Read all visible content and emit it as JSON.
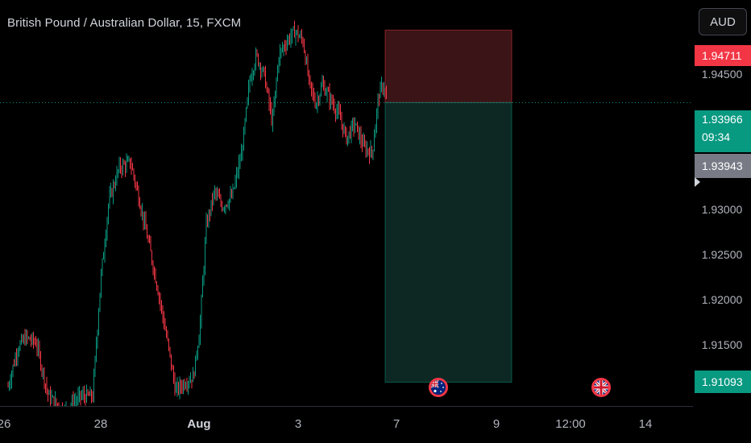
{
  "symbol": {
    "title": "British Pound / Australian Dollar, 15, FXCM"
  },
  "currency_button": {
    "label": "AUD"
  },
  "price_axis": {
    "ticks": [
      "1.94500",
      "1.93000",
      "1.92500",
      "1.92000",
      "1.91500"
    ],
    "stop_price": "1.94711",
    "last_price": "1.93966",
    "countdown": "09:34",
    "bid_price": "1.93943",
    "target_price": "1.91093"
  },
  "time_axis": {
    "labels": [
      "26",
      "28",
      "Aug",
      "3",
      "7",
      "9",
      "12:00",
      "14"
    ]
  },
  "events": [
    {
      "icon": "australia-flag-icon",
      "country": "AU"
    },
    {
      "icon": "uk-flag-icon",
      "country": "GB"
    }
  ],
  "colors": {
    "up": "#089981",
    "down": "#f23645",
    "stop_zone": "#3a1416",
    "target_zone": "#0d2823",
    "background": "#000000"
  },
  "position": {
    "type": "short",
    "entry": 1.93966,
    "stop": 1.94711,
    "target": 1.91093
  },
  "price_range": {
    "min": 1.9085,
    "max": 1.9502
  }
}
